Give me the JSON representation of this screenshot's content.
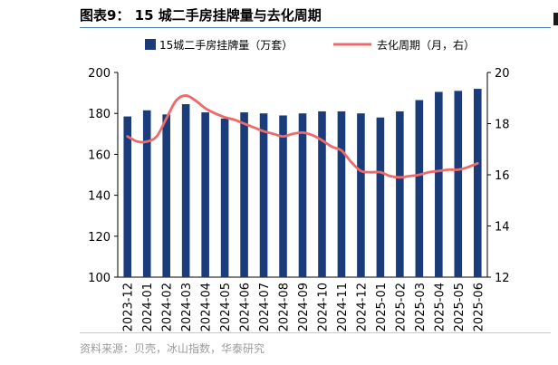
{
  "figure_title": "图表9：  15 城二手房挂牌量与去化周期",
  "source_note": "资料来源：贝壳，冰山指数，华泰研究",
  "chart_data": {
    "type": "bar+line",
    "categories": [
      "2023-12",
      "2024-01",
      "2024-02",
      "2024-03",
      "2024-04",
      "2024-05",
      "2024-06",
      "2024-07",
      "2024-08",
      "2024-09",
      "2024-10",
      "2024-11",
      "2024-12",
      "2025-01",
      "2025-02",
      "2025-03",
      "2025-04",
      "2025-05",
      "2025-06"
    ],
    "series": [
      {
        "name": "15城二手房挂牌量（万套）",
        "type": "bar",
        "axis": "left",
        "color": "#1a3c7a",
        "values": [
          178.5,
          181.5,
          179.5,
          184.5,
          180.5,
          177.5,
          180.5,
          180.0,
          179.0,
          180.0,
          181.0,
          181.0,
          180.0,
          178.0,
          181.0,
          186.5,
          190.5,
          191.0,
          192.0
        ]
      },
      {
        "name": "去化周期（月，右）",
        "type": "line",
        "axis": "right",
        "color": "#ee6a6a",
        "points": [
          [
            0,
            17.5
          ],
          [
            0.5,
            17.3
          ],
          [
            1.0,
            17.3
          ],
          [
            1.5,
            17.5
          ],
          [
            2.0,
            18.2
          ],
          [
            2.5,
            18.9
          ],
          [
            3.0,
            19.1
          ],
          [
            3.5,
            18.9
          ],
          [
            4.0,
            18.6
          ],
          [
            4.5,
            18.4
          ],
          [
            5.0,
            18.25
          ],
          [
            5.5,
            18.15
          ],
          [
            6.0,
            18.0
          ],
          [
            6.5,
            17.85
          ],
          [
            7.0,
            17.7
          ],
          [
            7.5,
            17.6
          ],
          [
            8.0,
            17.5
          ],
          [
            8.5,
            17.6
          ],
          [
            9.0,
            17.65
          ],
          [
            9.5,
            17.55
          ],
          [
            10.0,
            17.35
          ],
          [
            10.5,
            17.1
          ],
          [
            11.0,
            16.95
          ],
          [
            11.5,
            16.5
          ],
          [
            12.0,
            16.15
          ],
          [
            12.5,
            16.1
          ],
          [
            13.0,
            16.1
          ],
          [
            13.5,
            15.95
          ],
          [
            14.0,
            15.9
          ],
          [
            14.5,
            15.95
          ],
          [
            15.0,
            16.0
          ],
          [
            15.5,
            16.1
          ],
          [
            16.0,
            16.15
          ],
          [
            16.5,
            16.2
          ],
          [
            17.0,
            16.2
          ],
          [
            17.5,
            16.3
          ],
          [
            18.0,
            16.45
          ]
        ]
      }
    ],
    "y_left": {
      "lim": [
        100,
        200
      ],
      "ticks": [
        "100",
        "120",
        "140",
        "160",
        "180",
        "200"
      ]
    },
    "y_right": {
      "lim": [
        12,
        20
      ],
      "ticks": [
        "12",
        "14",
        "16",
        "18",
        "20"
      ]
    },
    "legend": "top",
    "grid": false
  }
}
